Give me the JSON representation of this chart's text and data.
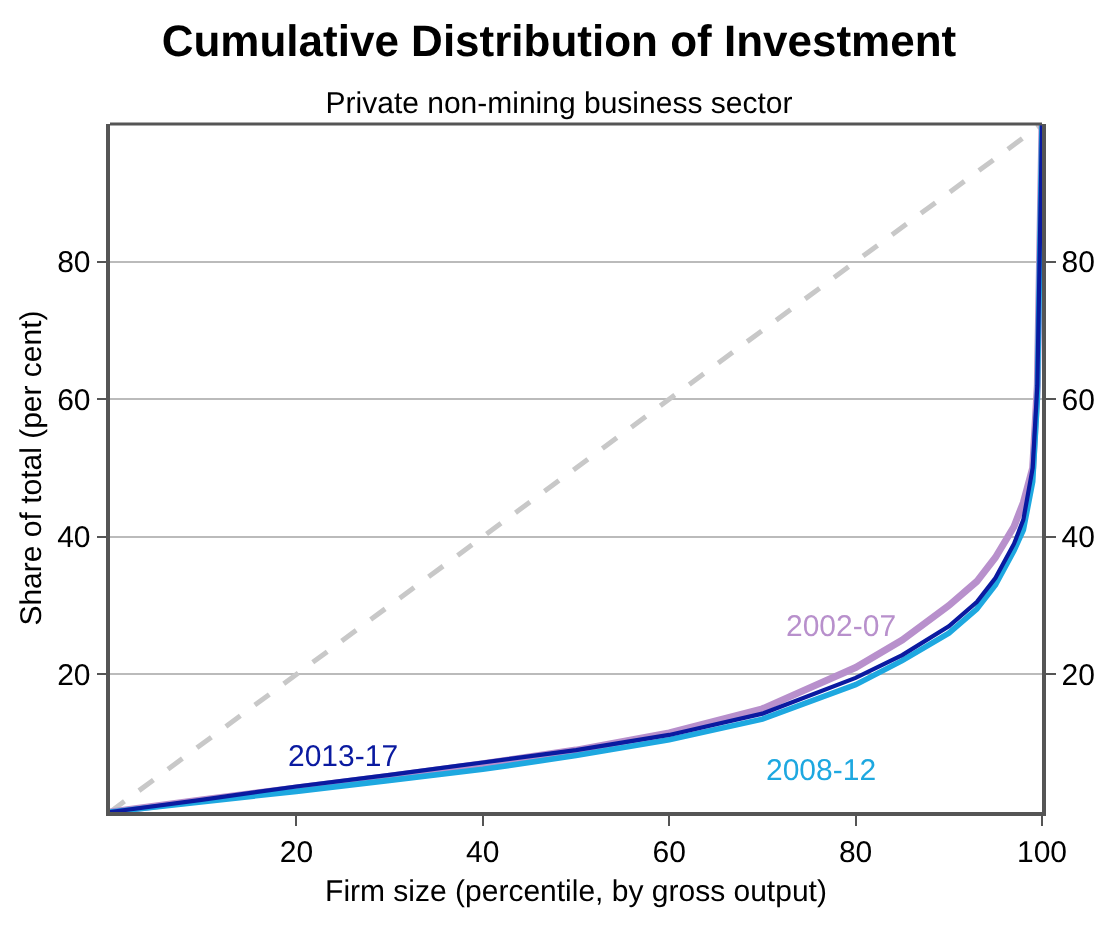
{
  "chart_data": {
    "type": "line",
    "title": "Cumulative Distribution of Investment",
    "subtitle": "Private non-mining business sector",
    "xlabel": "Firm size (percentile, by gross output)",
    "ylabel": "Share of total (per cent)",
    "xlim": [
      0,
      100
    ],
    "ylim": [
      0,
      100
    ],
    "xticks": [
      20,
      40,
      60,
      80,
      100
    ],
    "yticks": [
      20,
      40,
      60,
      80
    ],
    "y2lim": [
      0,
      100
    ],
    "y2ticks": [
      20,
      40,
      60,
      80
    ],
    "grid": "y",
    "legend": false,
    "marker": "none",
    "series": [
      {
        "color": "#c8c8c8",
        "line_style": "dashed",
        "x": [
          0,
          100
        ],
        "values": [
          0,
          100
        ]
      },
      {
        "name": "2002-07",
        "color": "#b890cc",
        "x": [
          0,
          10,
          20,
          30,
          40,
          50,
          60,
          70,
          80,
          85,
          90,
          93,
          95,
          97,
          98,
          99,
          99.5,
          100
        ],
        "values": [
          0,
          1.8,
          3.5,
          5.2,
          7,
          9,
          11.5,
          15,
          21,
          25,
          30,
          33.5,
          37,
          41.5,
          45,
          50,
          62,
          100
        ]
      },
      {
        "name": "2008-12",
        "color": "#1ea8e0",
        "x": [
          0,
          10,
          20,
          30,
          40,
          50,
          60,
          70,
          80,
          85,
          90,
          93,
          95,
          97,
          98,
          99,
          99.5,
          100
        ],
        "values": [
          0,
          1.5,
          3,
          4.6,
          6.2,
          8.2,
          10.5,
          13.5,
          18.5,
          22,
          26,
          29.5,
          33,
          38,
          41,
          48,
          60,
          100
        ]
      },
      {
        "name": "2013-17",
        "color": "#0a1aa0",
        "x": [
          0,
          10,
          20,
          30,
          40,
          50,
          60,
          70,
          80,
          85,
          90,
          93,
          95,
          97,
          98,
          99,
          99.5,
          100
        ],
        "values": [
          0,
          1.8,
          3.7,
          5.4,
          7.2,
          9,
          11.2,
          14.3,
          19.5,
          22.8,
          27,
          30.5,
          34,
          39,
          42.5,
          50,
          62,
          100
        ]
      }
    ]
  }
}
